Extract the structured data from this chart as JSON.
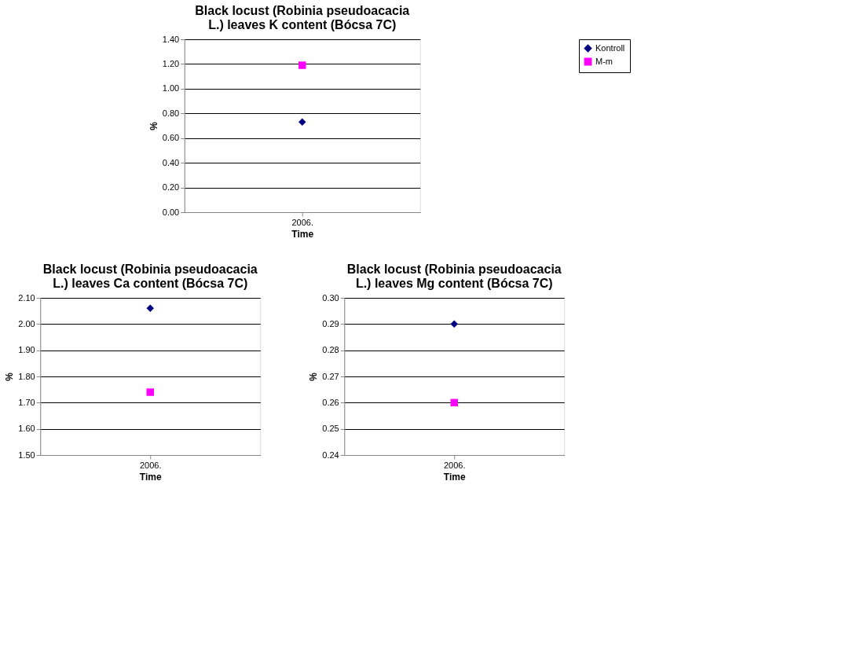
{
  "chart_data": [
    {
      "type": "line",
      "title": "Black locust (Robinia pseudoacacia L.) leaves K content (Bócsa 7C)",
      "xlabel": "Time",
      "ylabel": "%",
      "categories": [
        "2006."
      ],
      "series": [
        {
          "name": "Kontroll",
          "color": "#000080",
          "marker": "diamond",
          "values": [
            0.73
          ]
        },
        {
          "name": "M-m",
          "color": "#ff00ff",
          "marker": "square",
          "values": [
            1.19
          ]
        }
      ],
      "ylim": [
        0,
        1.4
      ],
      "yticks": [
        {
          "value": 0,
          "label": "0.00"
        },
        {
          "value": 0.2,
          "label": "0.20"
        },
        {
          "value": 0.4,
          "label": "0.40"
        },
        {
          "value": 0.6,
          "label": "0.60"
        },
        {
          "value": 0.8,
          "label": "0.80"
        },
        {
          "value": 1.0,
          "label": "1.00"
        },
        {
          "value": 1.2,
          "label": "1.20"
        },
        {
          "value": 1.4,
          "label": "1.40"
        }
      ],
      "grid": "y",
      "legend": "right"
    },
    {
      "type": "line",
      "title": "Black locust (Robinia pseudoacacia L.) leaves Ca content (Bócsa 7C)",
      "xlabel": "Time",
      "ylabel": "%",
      "categories": [
        "2006."
      ],
      "series": [
        {
          "name": "Kontroll",
          "color": "#000080",
          "marker": "diamond",
          "values": [
            2.06
          ]
        },
        {
          "name": "M-m",
          "color": "#ff00ff",
          "marker": "square",
          "values": [
            1.74
          ]
        }
      ],
      "ylim": [
        1.5,
        2.1
      ],
      "yticks": [
        {
          "value": 1.5,
          "label": "1.50"
        },
        {
          "value": 1.6,
          "label": "1.60"
        },
        {
          "value": 1.7,
          "label": "1.70"
        },
        {
          "value": 1.8,
          "label": "1.80"
        },
        {
          "value": 1.9,
          "label": "1.90"
        },
        {
          "value": 2.0,
          "label": "2.00"
        },
        {
          "value": 2.1,
          "label": "2.10"
        }
      ],
      "grid": "y",
      "legend": "right"
    },
    {
      "type": "line",
      "title": "Black locust (Robinia pseudoacacia L.) leaves Mg content (Bócsa 7C)",
      "xlabel": "Time",
      "ylabel": "%",
      "categories": [
        "2006."
      ],
      "series": [
        {
          "name": "Kontroll",
          "color": "#000080",
          "marker": "diamond",
          "values": [
            0.29
          ]
        },
        {
          "name": "M-m",
          "color": "#ff00ff",
          "marker": "square",
          "values": [
            0.26
          ]
        }
      ],
      "ylim": [
        0.24,
        0.3
      ],
      "yticks": [
        0.24,
        0.25,
        0.26,
        0.27,
        0.28,
        0.29,
        {
          "value": 0.3,
          "label": "0.30"
        }
      ],
      "grid": "y",
      "legend": "right"
    }
  ]
}
